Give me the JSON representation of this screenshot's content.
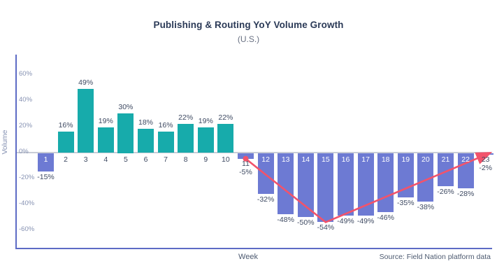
{
  "chart_data": {
    "type": "bar",
    "title": "Publishing & Routing YoY Volume Growth",
    "subtitle": "(U.S.)",
    "xlabel": "Week",
    "ylabel": "Volume",
    "source": "Source: Field Nation platform data",
    "categories": [
      1,
      2,
      3,
      4,
      5,
      6,
      7,
      8,
      9,
      10,
      11,
      12,
      13,
      14,
      15,
      16,
      17,
      18,
      19,
      20,
      21,
      22,
      23
    ],
    "values": [
      -15,
      16,
      49,
      19,
      30,
      18,
      16,
      22,
      19,
      22,
      -5,
      -32,
      -48,
      -50,
      -54,
      -49,
      -49,
      -46,
      -35,
      -38,
      -26,
      -28,
      -2
    ],
    "value_labels": [
      "-15%",
      "16%",
      "49%",
      "19%",
      "30%",
      "18%",
      "16%",
      "22%",
      "19%",
      "22%",
      "-5%",
      "-32%",
      "-48%",
      "-50%",
      "-54%",
      "-49%",
      "-49%",
      "-46%",
      "-35%",
      "-38%",
      "-26%",
      "-28%",
      "-2%"
    ],
    "yticks": [
      60,
      40,
      20,
      0,
      -20,
      -40,
      -60
    ],
    "ytick_labels": [
      "60%",
      "40%",
      "20%",
      "0%",
      "-20%",
      "-40%",
      "-60%"
    ],
    "ylim": [
      -60,
      60
    ],
    "grid": false,
    "legend": "none",
    "bar_colors": {
      "positive": "#17abab",
      "negative": "#6d7ad3"
    },
    "trend_line": {
      "color": "#f2536b",
      "points": [
        {
          "week": 11,
          "value": -5
        },
        {
          "week": 15,
          "value": -54
        },
        {
          "week": 23,
          "value": -2
        }
      ],
      "start_dot": true,
      "end_arrow": true
    },
    "colors": {
      "axis": "#5d6bc5",
      "zero_line": "#c9cdd6",
      "title": "#2b3a57",
      "subtitle": "#687082",
      "tick_label": "#8591b2",
      "data_label": "#3d4961",
      "bar_label_inside": "#ffffff",
      "caption": "#4d5a70"
    }
  }
}
